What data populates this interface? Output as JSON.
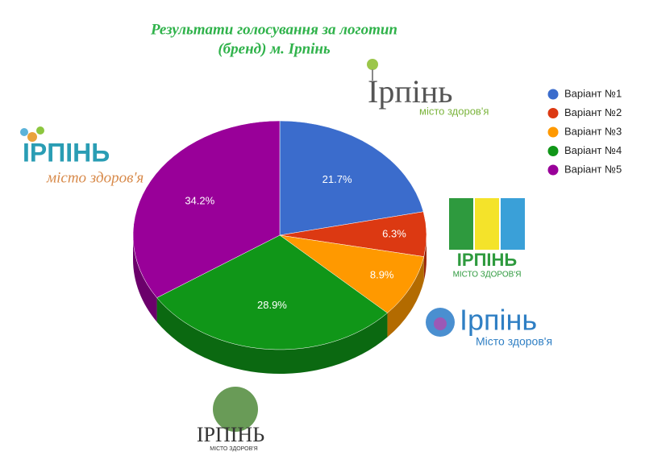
{
  "chart_data": {
    "type": "pie",
    "title": [
      "Результати голосування за логотип",
      "(бренд) м. Ірпінь"
    ],
    "categories": [
      "Варіант №1",
      "Варіант №2",
      "Варіант №3",
      "Варіант №4",
      "Варіант №5"
    ],
    "values": [
      21.7,
      6.3,
      8.9,
      28.9,
      34.2
    ],
    "value_labels": [
      "21.7%",
      "6.3%",
      "8.9%",
      "28.9%",
      "34.2%"
    ],
    "colors": [
      "#3b6ccc",
      "#dc3912",
      "#ff9900",
      "#109618",
      "#990099"
    ],
    "legend": "right",
    "logos": [
      {
        "title": "Ірпінь",
        "subtitle": "місто здоров'я"
      },
      {
        "title": "ІРПІНЬ",
        "subtitle": "місто здоров'я"
      },
      {
        "title": "ІРПІНЬ",
        "subtitle": "МІСТО ЗДОРОВ'Я"
      },
      {
        "title": "Ірпінь",
        "subtitle": "Місто здоров'я"
      },
      {
        "title": "ІРПІНЬ",
        "subtitle": "МІСТО ЗДОРОВ'Я"
      }
    ]
  }
}
